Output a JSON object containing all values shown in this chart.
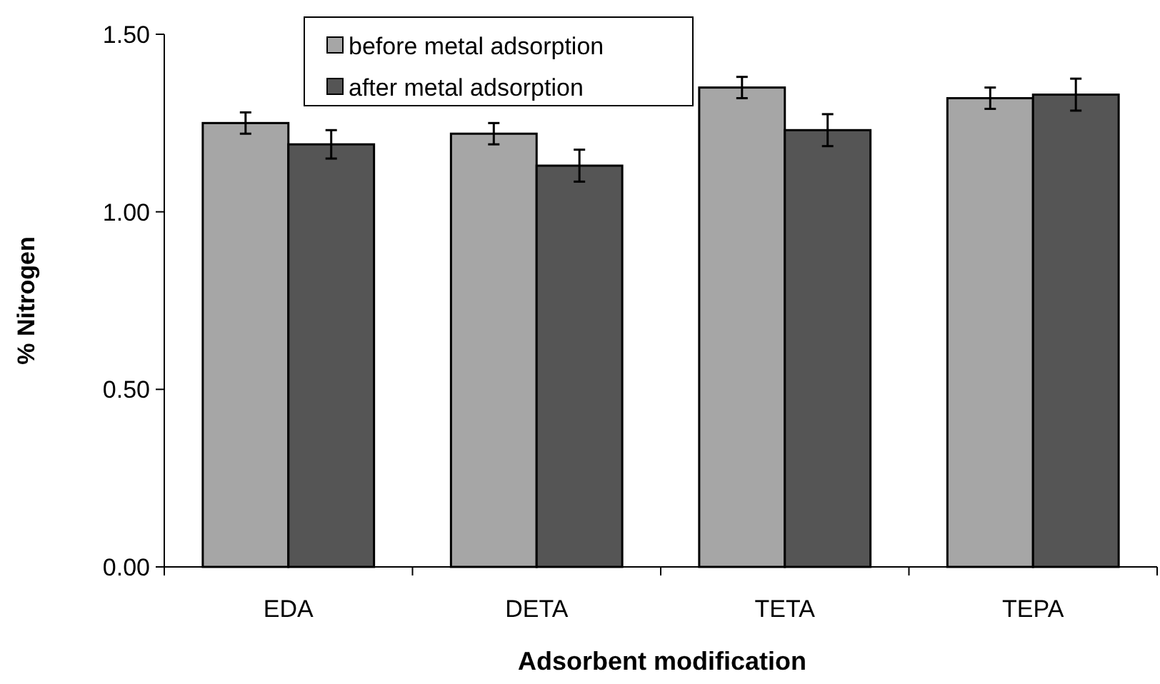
{
  "chart_data": {
    "type": "bar",
    "xlabel": "Adsorbent modification",
    "ylabel": "% Nitrogen",
    "categories": [
      "EDA",
      "DETA",
      "TETA",
      "TEPA"
    ],
    "series": [
      {
        "name": "before metal adsorption",
        "color": "#a6a6a6",
        "values": [
          1.25,
          1.22,
          1.35,
          1.32
        ],
        "errors": [
          0.03,
          0.03,
          0.03,
          0.03
        ]
      },
      {
        "name": "after metal adsorption",
        "color": "#555555",
        "values": [
          1.19,
          1.13,
          1.23,
          1.33
        ],
        "errors": [
          0.04,
          0.045,
          0.045,
          0.045
        ]
      }
    ],
    "ylim": [
      0,
      1.5
    ],
    "yticks": [
      {
        "value": 0,
        "label": "0.00"
      },
      {
        "value": 0.5,
        "label": "0.50"
      },
      {
        "value": 1,
        "label": "1.00"
      },
      {
        "value": 1.5,
        "label": "1.50"
      }
    ],
    "grid": false,
    "legend": "top"
  }
}
